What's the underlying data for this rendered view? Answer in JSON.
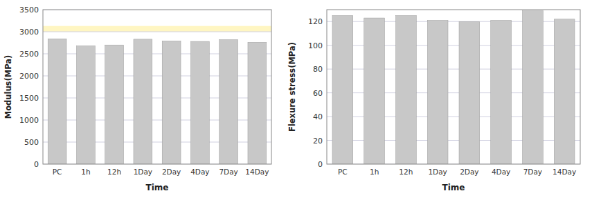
{
  "chart_data": [
    {
      "type": "bar",
      "categories": [
        "PC",
        "1h",
        "12h",
        "1Day",
        "2Day",
        "4Day",
        "7Day",
        "14Day"
      ],
      "values": [
        2840,
        2680,
        2700,
        2830,
        2790,
        2780,
        2820,
        2760
      ],
      "color": "#c8c8c8",
      "x_label": "Time",
      "y_label": "Modulus(MPa)",
      "ylim": [
        0,
        3500
      ],
      "yticks": [
        0,
        500,
        1000,
        1500,
        2000,
        2500,
        3000,
        3500
      ],
      "highlight_band": [
        3000,
        3130
      ],
      "grid": true
    },
    {
      "type": "bar",
      "categories": [
        "PC",
        "1h",
        "12h",
        "1Day",
        "2Day",
        "4Day",
        "7Day",
        "14Day"
      ],
      "values": [
        125,
        123,
        125,
        121,
        120,
        121,
        129,
        122
      ],
      "color": "#c8c8c8",
      "x_label": "Time",
      "y_label": "Flexure stress(MPa)",
      "ylim": [
        0,
        130
      ],
      "yticks": [
        0,
        20,
        40,
        60,
        80,
        100,
        120
      ],
      "grid": true
    }
  ]
}
